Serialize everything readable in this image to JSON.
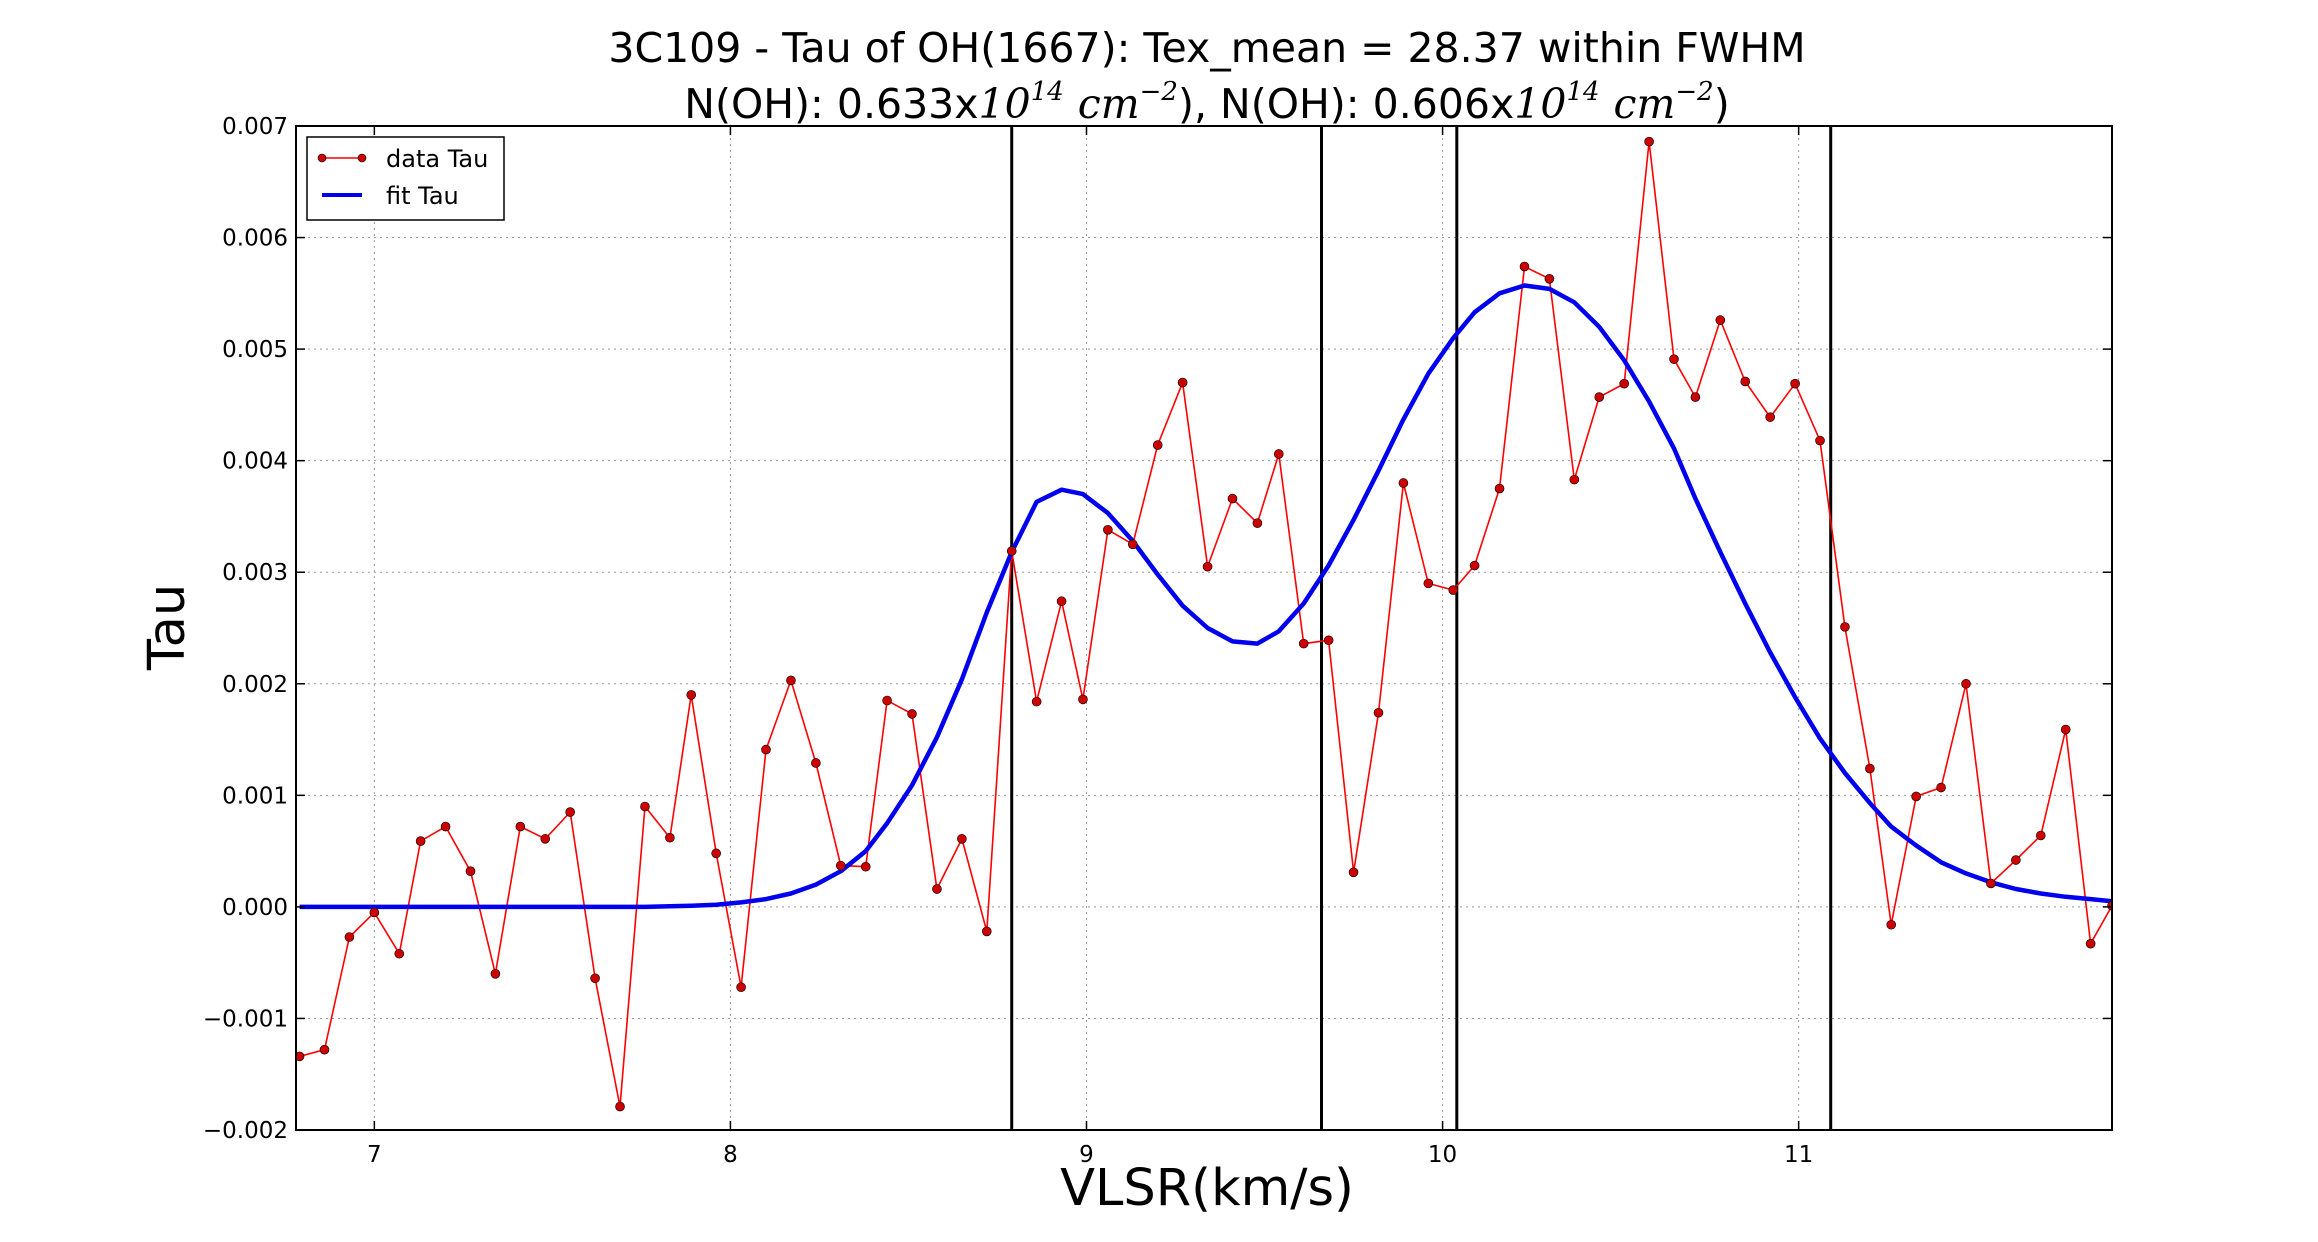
{
  "chart_data": {
    "type": "line",
    "title_line1": "3C109 - Tau of OH(1667): Tex_mean = 28.37 within FWHM",
    "title_line2": {
      "part1": "N(OH): 0.633x",
      "part2": "), N(OH): 0.606x",
      "part3": ")",
      "ten": "10",
      "exp14": "14",
      "cm": "cm",
      "exp_m2": "−2"
    },
    "xlabel": "VLSR(km/s)",
    "ylabel": "Tau",
    "xlim": [
      6.78,
      11.88
    ],
    "ylim": [
      -0.002,
      0.007
    ],
    "xticks": [
      7,
      8,
      9,
      10,
      11
    ],
    "xtick_labels": [
      "7",
      "8",
      "9",
      "10",
      "11"
    ],
    "yticks": [
      -0.002,
      -0.001,
      0.0,
      0.001,
      0.002,
      0.003,
      0.004,
      0.005,
      0.006,
      0.007
    ],
    "ytick_labels": [
      "−0.002",
      "−0.001",
      "0.000",
      "0.001",
      "0.002",
      "0.003",
      "0.004",
      "0.005",
      "0.006",
      "0.007"
    ],
    "grid": true,
    "legend_position": "top-left",
    "vlines": [
      8.79,
      9.66,
      10.04,
      11.09
    ],
    "series": [
      {
        "name": "data Tau",
        "color": "#ff0000",
        "marker_color": "#cc0000",
        "style": "line-dots",
        "x": [
          6.79,
          6.86,
          6.93,
          7.0,
          7.07,
          7.13,
          7.2,
          7.27,
          7.34,
          7.41,
          7.48,
          7.55,
          7.62,
          7.69,
          7.76,
          7.83,
          7.89,
          7.96,
          8.03,
          8.1,
          8.17,
          8.24,
          8.31,
          8.38,
          8.44,
          8.51,
          8.58,
          8.65,
          8.72,
          8.79,
          8.86,
          8.93,
          8.99,
          9.06,
          9.13,
          9.2,
          9.27,
          9.34,
          9.41,
          9.48,
          9.54,
          9.61,
          9.68,
          9.75,
          9.82,
          9.89,
          9.96,
          10.03,
          10.09,
          10.16,
          10.23,
          10.3,
          10.37,
          10.44,
          10.51,
          10.58,
          10.65,
          10.71,
          10.78,
          10.85,
          10.92,
          10.99,
          11.06,
          11.13,
          11.2,
          11.26,
          11.33,
          11.4,
          11.47,
          11.54,
          11.61,
          11.68,
          11.75,
          11.82,
          11.88
        ],
        "y": [
          -0.00134,
          -0.00128,
          -0.00027,
          -5e-05,
          -0.00042,
          0.00059,
          0.00072,
          0.00032,
          -0.0006,
          0.00072,
          0.00061,
          0.00085,
          -0.00064,
          -0.00179,
          0.0009,
          0.00062,
          0.0019,
          0.00048,
          -0.00072,
          0.00141,
          0.00203,
          0.00129,
          0.00037,
          0.00036,
          0.00185,
          0.00173,
          0.00016,
          0.00061,
          -0.00022,
          0.00319,
          0.00184,
          0.00274,
          0.00186,
          0.00338,
          0.00325,
          0.00414,
          0.0047,
          0.00305,
          0.00366,
          0.00344,
          0.00406,
          0.00236,
          0.00239,
          0.00031,
          0.00174,
          0.0038,
          0.0029,
          0.00284,
          0.00306,
          0.00375,
          0.00574,
          0.00563,
          0.00383,
          0.00457,
          0.00469,
          0.00686,
          0.00491,
          0.00457,
          0.00526,
          0.00471,
          0.00439,
          0.00469,
          0.00418,
          0.00251,
          0.00124,
          -0.00016,
          0.00099,
          0.00107,
          0.002,
          0.00021,
          0.00042,
          0.00064,
          0.00159,
          -0.00033,
          1e-05
        ]
      },
      {
        "name": "fit Tau",
        "color": "#0000ee",
        "style": "line",
        "x": [
          6.79,
          6.86,
          6.93,
          7.0,
          7.07,
          7.13,
          7.2,
          7.27,
          7.34,
          7.41,
          7.48,
          7.55,
          7.62,
          7.69,
          7.76,
          7.83,
          7.89,
          7.96,
          8.03,
          8.1,
          8.17,
          8.24,
          8.31,
          8.38,
          8.44,
          8.51,
          8.58,
          8.65,
          8.72,
          8.79,
          8.86,
          8.93,
          8.99,
          9.06,
          9.13,
          9.2,
          9.27,
          9.34,
          9.41,
          9.48,
          9.54,
          9.61,
          9.68,
          9.75,
          9.82,
          9.89,
          9.96,
          10.03,
          10.09,
          10.16,
          10.23,
          10.3,
          10.37,
          10.44,
          10.51,
          10.58,
          10.65,
          10.71,
          10.78,
          10.85,
          10.92,
          10.99,
          11.06,
          11.13,
          11.2,
          11.26,
          11.33,
          11.4,
          11.47,
          11.54,
          11.61,
          11.68,
          11.75,
          11.82,
          11.88
        ],
        "y": [
          0.0,
          0.0,
          0.0,
          0.0,
          0.0,
          0.0,
          0.0,
          0.0,
          0.0,
          0.0,
          0.0,
          0.0,
          0.0,
          0.0,
          0.0,
          5e-06,
          1e-05,
          2e-05,
          4e-05,
          7e-05,
          0.00012,
          0.0002,
          0.00032,
          0.0005,
          0.00075,
          0.00109,
          0.00152,
          0.00204,
          0.00264,
          0.00318,
          0.00363,
          0.00374,
          0.0037,
          0.00353,
          0.00328,
          0.00298,
          0.0027,
          0.0025,
          0.00238,
          0.00236,
          0.00247,
          0.00272,
          0.00306,
          0.00347,
          0.00391,
          0.00437,
          0.00478,
          0.0051,
          0.00533,
          0.0055,
          0.00557,
          0.00554,
          0.00542,
          0.0052,
          0.0049,
          0.00453,
          0.00411,
          0.00366,
          0.00318,
          0.00272,
          0.00228,
          0.00188,
          0.00151,
          0.0012,
          0.00093,
          0.00072,
          0.00055,
          0.0004,
          0.0003,
          0.00022,
          0.00016,
          0.00012,
          9e-05,
          7e-05,
          5e-05
        ]
      }
    ]
  }
}
